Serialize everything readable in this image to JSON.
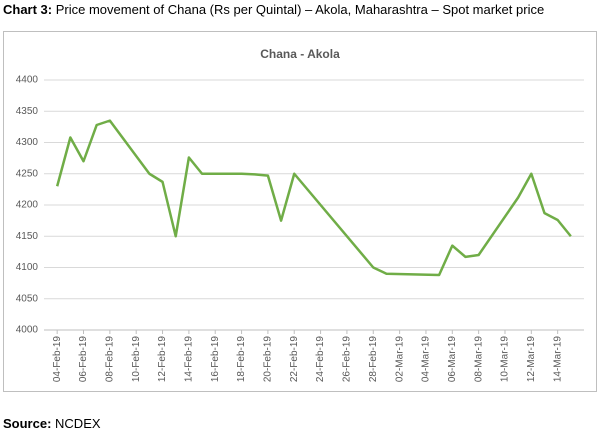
{
  "caption": {
    "label": "Chart 3:",
    "text": "Price movement of Chana (Rs per Quintal) – Akola, Maharashtra – Spot market price"
  },
  "source": {
    "label": "Source:",
    "text": "NCDEX"
  },
  "chart_data": {
    "type": "line",
    "title": "Chana - Akola",
    "x": [
      "2019-02-04",
      "2019-02-05",
      "2019-02-06",
      "2019-02-07",
      "2019-02-08",
      "2019-02-11",
      "2019-02-12",
      "2019-02-13",
      "2019-02-14",
      "2019-02-15",
      "2019-02-18",
      "2019-02-19",
      "2019-02-20",
      "2019-02-21",
      "2019-02-22",
      "2019-02-28",
      "2019-03-01",
      "2019-03-05",
      "2019-03-06",
      "2019-03-07",
      "2019-03-08",
      "2019-03-11",
      "2019-03-12",
      "2019-03-13",
      "2019-03-14",
      "2019-03-15"
    ],
    "series": [
      {
        "name": "Chana - Akola",
        "color": "#70ad47",
        "values": [
          4230,
          4308,
          4270,
          4328,
          4335,
          4250,
          4237,
          4150,
          4276,
          4250,
          4250,
          4249,
          4247,
          4175,
          4250,
          4100,
          4090,
          4088,
          4135,
          4117,
          4120,
          4212,
          4250,
          4187,
          4176,
          4150
        ]
      }
    ],
    "xlim": [
      "2019-02-03",
      "2019-03-16"
    ],
    "xticks": [
      {
        "value": "2019-02-04",
        "label": "04-Feb-19"
      },
      {
        "value": "2019-02-06",
        "label": "06-Feb-19"
      },
      {
        "value": "2019-02-08",
        "label": "08-Feb-19"
      },
      {
        "value": "2019-02-10",
        "label": "10-Feb-19"
      },
      {
        "value": "2019-02-12",
        "label": "12-Feb-19"
      },
      {
        "value": "2019-02-14",
        "label": "14-Feb-19"
      },
      {
        "value": "2019-02-16",
        "label": "16-Feb-19"
      },
      {
        "value": "2019-02-18",
        "label": "18-Feb-19"
      },
      {
        "value": "2019-02-20",
        "label": "20-Feb-19"
      },
      {
        "value": "2019-02-22",
        "label": "22-Feb-19"
      },
      {
        "value": "2019-02-24",
        "label": "24-Feb-19"
      },
      {
        "value": "2019-02-26",
        "label": "26-Feb-19"
      },
      {
        "value": "2019-02-28",
        "label": "28-Feb-19"
      },
      {
        "value": "2019-03-02",
        "label": "02-Mar-19"
      },
      {
        "value": "2019-03-04",
        "label": "04-Mar-19"
      },
      {
        "value": "2019-03-06",
        "label": "06-Mar-19"
      },
      {
        "value": "2019-03-08",
        "label": "08-Mar-19"
      },
      {
        "value": "2019-03-10",
        "label": "10-Mar-19"
      },
      {
        "value": "2019-03-12",
        "label": "12-Mar-19"
      },
      {
        "value": "2019-03-14",
        "label": "14-Mar-19"
      }
    ],
    "ylim": [
      4000,
      4400
    ],
    "yticks": [
      4000,
      4050,
      4100,
      4150,
      4200,
      4250,
      4300,
      4350,
      4400
    ],
    "grid": true
  }
}
